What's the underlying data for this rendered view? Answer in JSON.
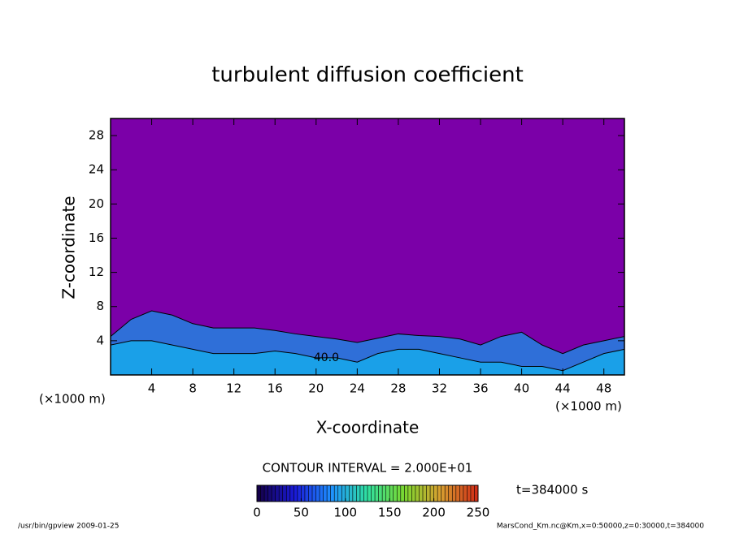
{
  "chart_data": {
    "type": "contour",
    "title": "turbulent diffusion coefficient",
    "x_label": "X-coordinate",
    "y_label": "Z-coordinate",
    "x_unit": "(×1000 m)",
    "y_unit": "(×1000 m)",
    "xlim": [
      0,
      50
    ],
    "ylim": [
      0,
      30
    ],
    "xticks": [
      4,
      8,
      12,
      16,
      20,
      24,
      28,
      32,
      36,
      40,
      44,
      48
    ],
    "yticks": [
      4,
      8,
      12,
      16,
      20,
      24,
      28
    ],
    "background_color": "#7b00a8",
    "x": [
      0,
      2,
      4,
      6,
      8,
      10,
      12,
      14,
      16,
      18,
      20,
      22,
      24,
      26,
      28,
      30,
      32,
      34,
      36,
      38,
      40,
      42,
      44,
      46,
      48,
      50
    ],
    "series": [
      {
        "color": "#2f6fd8",
        "values": [
          4.5,
          6.5,
          7.5,
          7,
          6,
          5.5,
          5.5,
          5.5,
          5.2,
          4.8,
          4.5,
          4.2,
          3.8,
          4.3,
          4.8,
          4.6,
          4.5,
          4.2,
          3.5,
          4.5,
          5,
          3.5,
          2.5,
          3.5,
          4,
          4.5
        ]
      },
      {
        "color": "#1aa0e8",
        "values": [
          3.5,
          4,
          4,
          3.5,
          3,
          2.5,
          2.5,
          2.5,
          2.8,
          2.5,
          2,
          2,
          1.5,
          2.5,
          3,
          3,
          2.5,
          2,
          1.5,
          1.5,
          1,
          1,
          0.5,
          1.5,
          2.5,
          3
        ]
      }
    ],
    "annotations": [
      {
        "text": "40.0",
        "x": 21,
        "y": 2
      }
    ],
    "contour_interval": "CONTOUR INTERVAL = 2.000E+01",
    "clim": [
      0,
      250
    ],
    "cticks": [
      0,
      50,
      100,
      150,
      200,
      250
    ],
    "colormap": [
      "#14004a",
      "#1a1ad8",
      "#1e90ff",
      "#30e0a0",
      "#7ad830",
      "#d8a030",
      "#d03018"
    ],
    "time_label": "t=384000 s",
    "footer_left": "/usr/bin/gpview  2009-01-25",
    "footer_right": "MarsCond_Km.nc@Km,x=0:50000,z=0:30000,t=384000"
  }
}
